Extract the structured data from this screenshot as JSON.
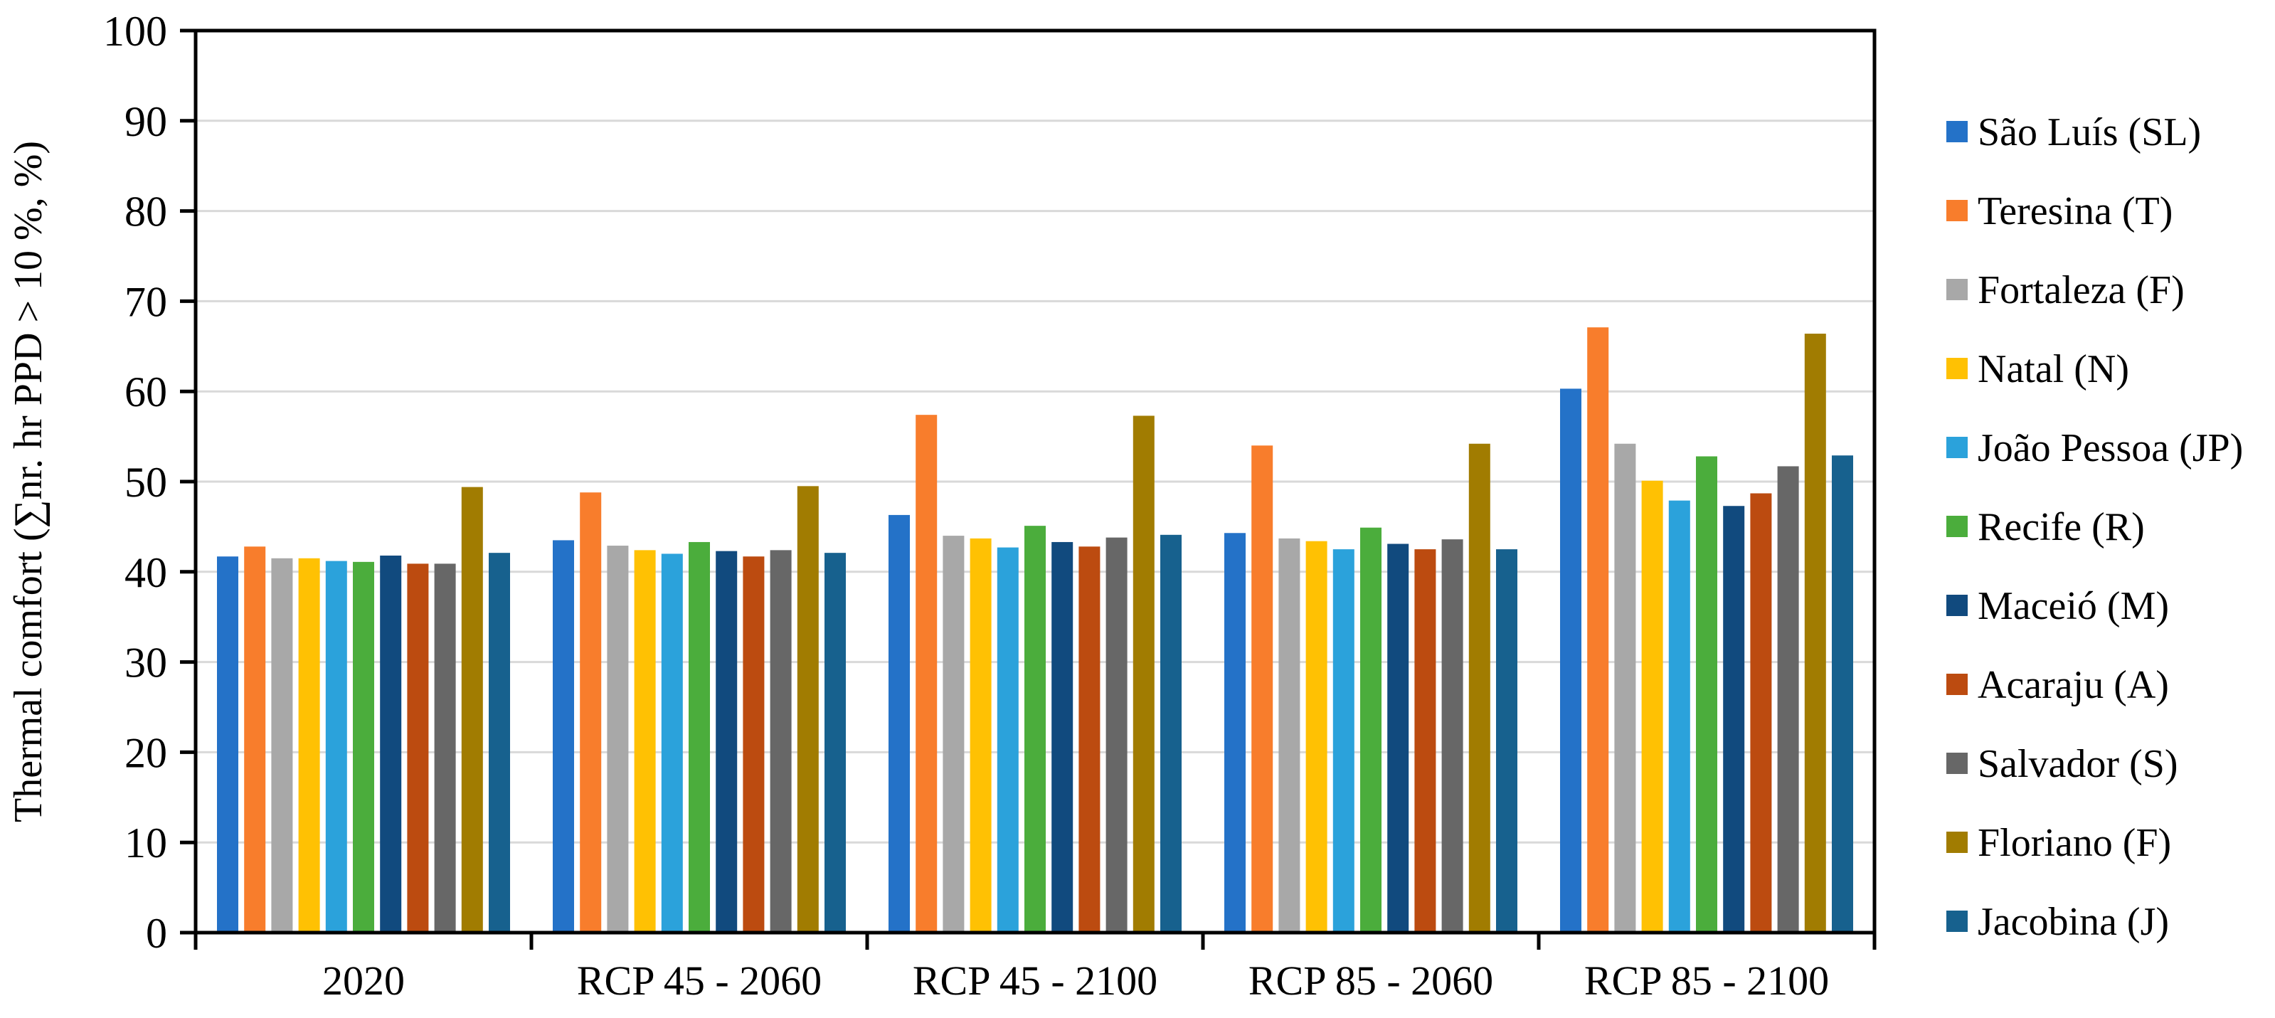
{
  "chart_data": {
    "type": "bar",
    "title": "",
    "xlabel": "",
    "ylabel": "Thermal comfort  (∑nr. hr PPD > 10 %, %)",
    "ylim": [
      0,
      100
    ],
    "ytick_step": 10,
    "yticks": [
      "0",
      "10",
      "20",
      "30",
      "40",
      "50",
      "60",
      "70",
      "80",
      "90",
      "100"
    ],
    "grid": true,
    "gridline_color": "#D9D9D9",
    "axis_color": "#000000",
    "legend_position": "right",
    "categories": [
      "2020",
      "RCP 45 - 2060",
      "RCP 45 - 2100",
      "RCP 85 - 2060",
      "RCP 85 - 2100"
    ],
    "series": [
      {
        "name": "São Luís (SL)",
        "short": "SL",
        "color": "#2472C8",
        "values": [
          41.7,
          43.5,
          46.3,
          44.3,
          60.3
        ]
      },
      {
        "name": "Teresina (T)",
        "short": "T",
        "color": "#F87D2C",
        "values": [
          42.8,
          48.8,
          57.4,
          54.0,
          67.1
        ]
      },
      {
        "name": "Fortaleza (F)",
        "short": "F",
        "color": "#A8A8A8",
        "values": [
          41.5,
          42.9,
          44.0,
          43.7,
          54.2
        ]
      },
      {
        "name": "Natal (N)",
        "short": "N",
        "color": "#FFC103",
        "values": [
          41.5,
          42.4,
          43.7,
          43.4,
          50.1
        ]
      },
      {
        "name": "João Pessoa (JP)",
        "short": "JP",
        "color": "#2BA2DB",
        "values": [
          41.2,
          42.0,
          42.7,
          42.5,
          47.9
        ]
      },
      {
        "name": "Recife (R)",
        "short": "R",
        "color": "#4BAD3C",
        "values": [
          41.1,
          43.3,
          45.1,
          44.9,
          52.8
        ]
      },
      {
        "name": "Maceió (M)",
        "short": "M",
        "color": "#114A7E",
        "values": [
          41.8,
          42.3,
          43.3,
          43.1,
          47.3
        ]
      },
      {
        "name": "Acaraju (A)",
        "short": "A",
        "color": "#BC4B10",
        "values": [
          40.9,
          41.7,
          42.8,
          42.5,
          48.7
        ]
      },
      {
        "name": "Salvador (S)",
        "short": "S",
        "color": "#676767",
        "values": [
          40.9,
          42.4,
          43.8,
          43.6,
          51.7
        ]
      },
      {
        "name": "Floriano (F)",
        "short": "Flo",
        "color": "#A17C01",
        "values": [
          49.4,
          49.5,
          57.3,
          54.2,
          66.4
        ]
      },
      {
        "name": "Jacobina (J)",
        "short": "J",
        "color": "#17618E",
        "values": [
          42.1,
          42.1,
          44.1,
          42.5,
          52.9
        ]
      }
    ]
  }
}
